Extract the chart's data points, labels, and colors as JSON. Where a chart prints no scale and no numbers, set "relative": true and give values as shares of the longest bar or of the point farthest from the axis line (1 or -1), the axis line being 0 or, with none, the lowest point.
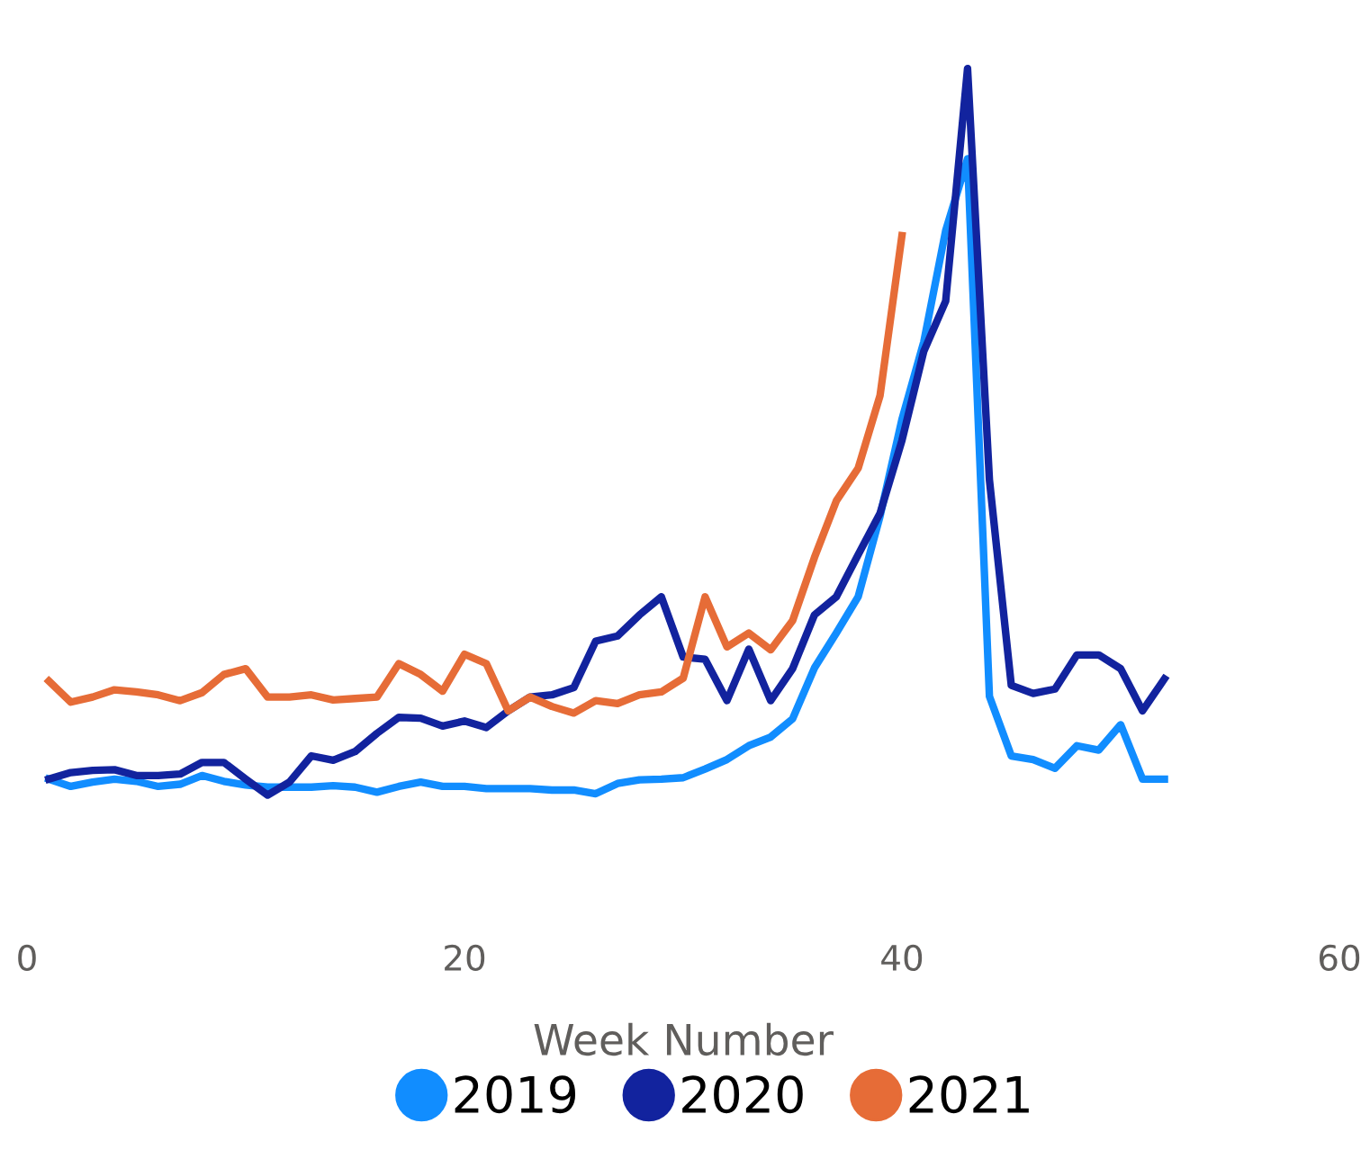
{
  "chart_data": {
    "type": "line",
    "relative": true,
    "xlabel": "Week Number",
    "xlim": [
      0,
      60
    ],
    "xticks": [
      0,
      20,
      40,
      60
    ],
    "grid": false,
    "legend": "bottom",
    "marker": "none",
    "line_style": "solid",
    "series": [
      {
        "name": "2019",
        "color": "#118dff",
        "x": [
          1,
          2,
          3,
          4,
          5,
          6,
          7,
          8,
          9,
          10,
          11,
          12,
          13,
          14,
          15,
          16,
          17,
          18,
          19,
          20,
          21,
          22,
          23,
          24,
          25,
          26,
          27,
          28,
          29,
          30,
          31,
          32,
          33,
          34,
          35,
          36,
          37,
          38,
          39,
          40,
          41,
          42,
          43,
          44,
          45,
          46,
          47,
          48,
          49,
          50,
          51,
          52
        ],
        "values": [
          0.022,
          0.012,
          0.018,
          0.022,
          0.019,
          0.012,
          0.015,
          0.027,
          0.019,
          0.014,
          0.011,
          0.011,
          0.011,
          0.013,
          0.011,
          0.004,
          0.012,
          0.018,
          0.012,
          0.012,
          0.009,
          0.009,
          0.009,
          0.007,
          0.007,
          0.002,
          0.016,
          0.021,
          0.022,
          0.024,
          0.036,
          0.049,
          0.068,
          0.08,
          0.105,
          0.175,
          0.223,
          0.273,
          0.384,
          0.517,
          0.624,
          0.777,
          0.876,
          0.136,
          0.054,
          0.049,
          0.037,
          0.068,
          0.062,
          0.097,
          0.022,
          0.022
        ]
      },
      {
        "name": "2020",
        "color": "#12239e",
        "x": [
          1,
          2,
          3,
          4,
          5,
          6,
          7,
          8,
          9,
          10,
          11,
          12,
          13,
          14,
          15,
          16,
          17,
          18,
          19,
          20,
          21,
          22,
          23,
          24,
          25,
          26,
          27,
          28,
          29,
          30,
          31,
          32,
          33,
          34,
          35,
          36,
          37,
          38,
          39,
          40,
          41,
          42,
          43,
          44,
          45,
          46,
          47,
          48,
          49,
          50,
          51,
          52
        ],
        "values": [
          0.022,
          0.031,
          0.034,
          0.035,
          0.027,
          0.027,
          0.029,
          0.045,
          0.045,
          0.022,
          0,
          0.018,
          0.054,
          0.048,
          0.06,
          0.085,
          0.107,
          0.106,
          0.095,
          0.102,
          0.093,
          0.116,
          0.135,
          0.138,
          0.148,
          0.212,
          0.219,
          0.248,
          0.273,
          0.19,
          0.187,
          0.13,
          0.201,
          0.13,
          0.174,
          0.248,
          0.273,
          0.331,
          0.388,
          0.488,
          0.611,
          0.68,
          1,
          0.434,
          0.151,
          0.14,
          0.146,
          0.193,
          0.193,
          0.174,
          0.116,
          0.16
        ]
      },
      {
        "name": "2021",
        "color": "#e66c37",
        "x": [
          1,
          2,
          3,
          4,
          5,
          6,
          7,
          8,
          9,
          10,
          11,
          12,
          13,
          14,
          15,
          16,
          17,
          18,
          19,
          20,
          21,
          22,
          23,
          24,
          25,
          26,
          27,
          28,
          29,
          30,
          31,
          32,
          33,
          34,
          35,
          36,
          37,
          38,
          39,
          40
        ],
        "values": [
          0.157,
          0.128,
          0.135,
          0.145,
          0.142,
          0.138,
          0.13,
          0.141,
          0.166,
          0.174,
          0.135,
          0.135,
          0.138,
          0.131,
          0.133,
          0.135,
          0.181,
          0.166,
          0.143,
          0.194,
          0.181,
          0.116,
          0.135,
          0.122,
          0.113,
          0.13,
          0.126,
          0.138,
          0.142,
          0.161,
          0.273,
          0.204,
          0.223,
          0.2,
          0.24,
          0.327,
          0.405,
          0.45,
          0.55,
          0.77
        ]
      }
    ]
  }
}
